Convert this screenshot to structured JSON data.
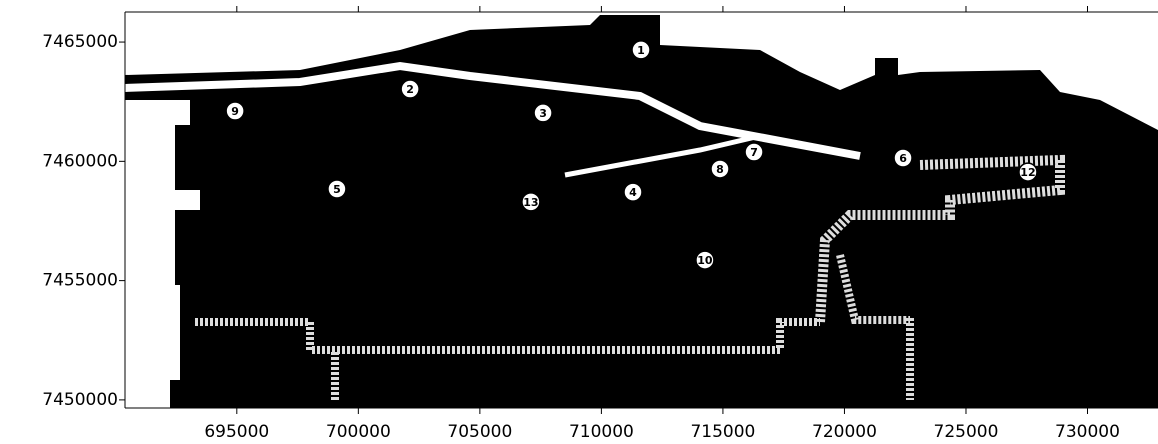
{
  "chart_data": {
    "type": "map",
    "xlim": [
      690400,
      732900
    ],
    "ylim": [
      7449660,
      7466260
    ],
    "xticks": [
      695000,
      700000,
      705000,
      710000,
      715000,
      720000,
      725000,
      730000
    ],
    "yticks": [
      7450000,
      7455000,
      7460000,
      7465000
    ],
    "points": [
      {
        "label": "1",
        "x": 711630,
        "y": 7464670
      },
      {
        "label": "2",
        "x": 702130,
        "y": 7463030
      },
      {
        "label": "3",
        "x": 707600,
        "y": 7462030
      },
      {
        "label": "4",
        "x": 711300,
        "y": 7458710
      },
      {
        "label": "5",
        "x": 699120,
        "y": 7458840
      },
      {
        "label": "6",
        "x": 722410,
        "y": 7460140
      },
      {
        "label": "7",
        "x": 716280,
        "y": 7460390
      },
      {
        "label": "8",
        "x": 714880,
        "y": 7459680
      },
      {
        "label": "9",
        "x": 694930,
        "y": 7462110
      },
      {
        "label": "10",
        "x": 714260,
        "y": 7455860
      },
      {
        "label": "12",
        "x": 727550,
        "y": 7459550
      },
      {
        "label": "13",
        "x": 707100,
        "y": 7458300
      }
    ]
  }
}
